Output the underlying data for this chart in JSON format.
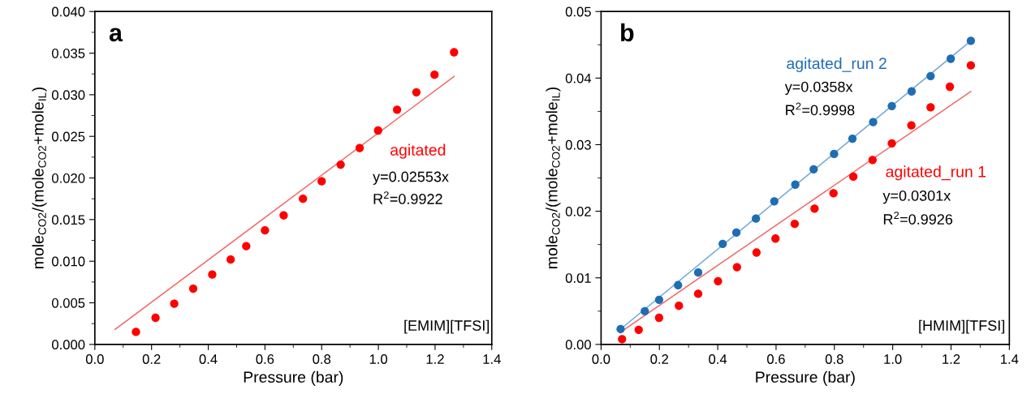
{
  "chart_data": [
    {
      "type": "scatter",
      "title": "a",
      "xlabel": "Pressure (bar)",
      "ylabel": "mole$_{CO2}$/(mole$_{CO2}$+mole$_{IL}$)",
      "xlim": [
        0,
        1.4
      ],
      "ylim": [
        0,
        0.04
      ],
      "xticks": [
        {
          "value": 0,
          "label": "0.0"
        },
        {
          "value": 0.2,
          "label": "0.2"
        },
        {
          "value": 0.4,
          "label": "0.4"
        },
        {
          "value": 0.6,
          "label": "0.6"
        },
        {
          "value": 0.8,
          "label": "0.8"
        },
        {
          "value": 1.0,
          "label": "1.0"
        },
        {
          "value": 1.2,
          "label": "1.2"
        },
        {
          "value": 1.4,
          "label": "1.4"
        }
      ],
      "yticks": [
        {
          "value": 0,
          "label": "0.000"
        },
        {
          "value": 0.005,
          "label": "0.005"
        },
        {
          "value": 0.01,
          "label": "0.010"
        },
        {
          "value": 0.015,
          "label": "0.015"
        },
        {
          "value": 0.02,
          "label": "0.020"
        },
        {
          "value": 0.025,
          "label": "0.025"
        },
        {
          "value": 0.03,
          "label": "0.030"
        },
        {
          "value": 0.035,
          "label": "0.035"
        },
        {
          "value": 0.04,
          "label": "0.040"
        }
      ],
      "grid": false,
      "legend": false,
      "series": [
        {
          "name": "agitated",
          "marker": "circle",
          "color": "#ff0000",
          "x": [
            0.145,
            0.214,
            0.28,
            0.347,
            0.414,
            0.479,
            0.534,
            0.6,
            0.666,
            0.734,
            0.8,
            0.867,
            0.934,
            0.999,
            1.066,
            1.134,
            1.198,
            1.267
          ],
          "values": [
            0.0015,
            0.0032,
            0.0049,
            0.0067,
            0.0084,
            0.0102,
            0.0118,
            0.0137,
            0.0155,
            0.0175,
            0.0196,
            0.0216,
            0.0236,
            0.0257,
            0.0282,
            0.0303,
            0.0324,
            0.0351
          ]
        },
        {
          "type": "line",
          "color": "#f06a6a",
          "x": [
            0.071,
            1.267
          ],
          "values": [
            0.0018,
            0.0322
          ]
        }
      ],
      "annotations": [
        "y=0.02553x",
        "R$^{2}$=0.9922",
        "[EMIM][TFSI]"
      ]
    },
    {
      "type": "scatter",
      "title": "b",
      "xlabel": "Pressure (bar)",
      "ylabel": "mole$_{CO2}$/(mole$_{CO2}$+mole$_{IL}$)",
      "xlim": [
        0,
        1.4
      ],
      "ylim": [
        0,
        0.05
      ],
      "xticks": [
        {
          "value": 0,
          "label": "0.0"
        },
        {
          "value": 0.2,
          "label": "0.2"
        },
        {
          "value": 0.4,
          "label": "0.4"
        },
        {
          "value": 0.6,
          "label": "0.6"
        },
        {
          "value": 0.8,
          "label": "0.8"
        },
        {
          "value": 1.0,
          "label": "1.0"
        },
        {
          "value": 1.2,
          "label": "1.2"
        },
        {
          "value": 1.4,
          "label": "1.4"
        }
      ],
      "yticks": [
        {
          "value": 0,
          "label": "0.00"
        },
        {
          "value": 0.01,
          "label": "0.01"
        },
        {
          "value": 0.02,
          "label": "0.02"
        },
        {
          "value": 0.03,
          "label": "0.03"
        },
        {
          "value": 0.04,
          "label": "0.04"
        },
        {
          "value": 0.05,
          "label": "0.05"
        }
      ],
      "grid": false,
      "legend": false,
      "series": [
        {
          "name": "agitated_run 2",
          "marker": "circle",
          "color": "#1f6db3",
          "x": [
            0.067,
            0.15,
            0.199,
            0.264,
            0.333,
            0.417,
            0.464,
            0.531,
            0.594,
            0.666,
            0.729,
            0.799,
            0.862,
            0.933,
            0.997,
            1.065,
            1.13,
            1.199,
            1.268
          ],
          "values": [
            0.0023,
            0.005,
            0.0067,
            0.0089,
            0.0108,
            0.0151,
            0.0168,
            0.0189,
            0.0215,
            0.024,
            0.0263,
            0.0286,
            0.0309,
            0.0334,
            0.0358,
            0.038,
            0.0403,
            0.0429,
            0.0456
          ]
        },
        {
          "type": "line",
          "color": "#6fa8d6",
          "x": [
            0.067,
            1.268
          ],
          "values": [
            0.0023,
            0.0456
          ]
        },
        {
          "name": "agitated_run 1",
          "marker": "circle",
          "color": "#ff0000",
          "x": [
            0.072,
            0.129,
            0.199,
            0.267,
            0.333,
            0.401,
            0.466,
            0.533,
            0.598,
            0.664,
            0.732,
            0.797,
            0.865,
            0.931,
            0.997,
            1.064,
            1.13,
            1.196,
            1.268
          ],
          "values": [
            0.0008,
            0.0022,
            0.004,
            0.0058,
            0.0076,
            0.0095,
            0.0116,
            0.0138,
            0.0159,
            0.0181,
            0.0204,
            0.0227,
            0.0252,
            0.0277,
            0.0302,
            0.0329,
            0.0356,
            0.0387,
            0.0419
          ]
        },
        {
          "type": "line",
          "color": "#f06a6a",
          "x": [
            0.072,
            1.268
          ],
          "values": [
            0.002,
            0.038
          ]
        }
      ],
      "annotations": [
        "y=0.0358x",
        "R$^{2}$=0.9998",
        "y=0.0301x",
        "R$^{2}$=0.9926",
        "[HMIM][TFSI]"
      ]
    }
  ]
}
